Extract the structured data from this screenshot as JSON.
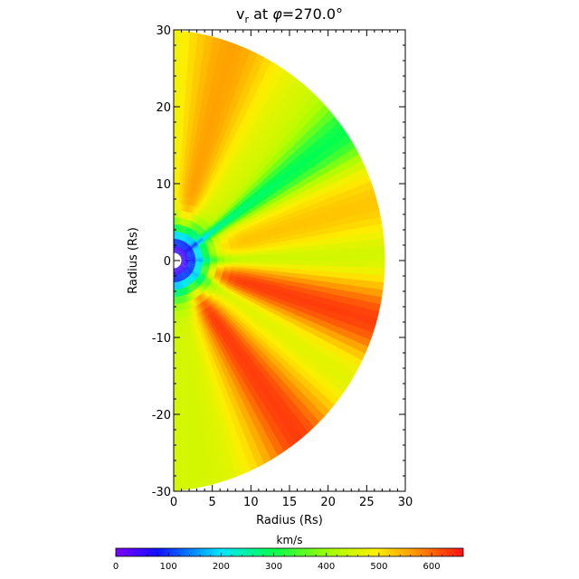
{
  "chart_data": {
    "type": "heatmap",
    "title": "v",
    "title_subscript": "r",
    "title_rest": " at ",
    "title_symbol": "φ",
    "title_value": "=270.0°",
    "xlabel": "Radius (Rs)",
    "ylabel": "Radius (Rs)",
    "xlim": [
      0,
      30
    ],
    "ylim": [
      -30,
      30
    ],
    "x_ticks": [
      "0",
      "5",
      "10",
      "15",
      "20",
      "25",
      "30"
    ],
    "y_ticks": [
      "-30",
      "-20",
      "-10",
      "0",
      "10",
      "20",
      "30"
    ],
    "domain": "right half-disk of radius 30 Rs",
    "colorbar": {
      "label": "km/s",
      "range": [
        0,
        660
      ],
      "ticks": [
        "0",
        "100",
        "200",
        "300",
        "400",
        "500",
        "600"
      ],
      "colormap": "rainbow (purple-blue-cyan-green-yellow-orange-red)"
    },
    "features": {
      "inner_boundary_radius": 1,
      "background_speed": 450,
      "slow_streamers": [
        {
          "angle_deg": 37,
          "min_speed": 210
        },
        {
          "angle_deg": 1,
          "min_speed": 380
        },
        {
          "angle_deg": -31,
          "min_speed": 400
        }
      ],
      "fast_regions": [
        {
          "angle_deg": 75,
          "max_speed": 560
        },
        {
          "angle_deg": 16,
          "max_speed": 530
        },
        {
          "angle_deg": -17,
          "max_speed": 630
        },
        {
          "angle_deg": -55,
          "max_speed": 630
        }
      ]
    }
  }
}
